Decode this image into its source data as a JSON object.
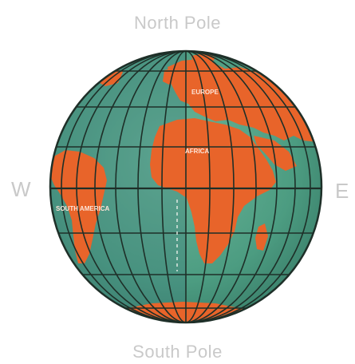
{
  "labels": {
    "north": "North Pole",
    "south": "South Pole",
    "west": "W",
    "east": "E"
  },
  "continents": {
    "europe": "EUROPE",
    "africa": "AFRICA",
    "south_america": "SOUTH AMERICA"
  },
  "colors": {
    "land": "#e8642a",
    "ocean_light": "#5aa88a",
    "ocean_dark": "#3f8f78",
    "grid": "#1e2f28",
    "label_gray": "#c9c9c9"
  }
}
